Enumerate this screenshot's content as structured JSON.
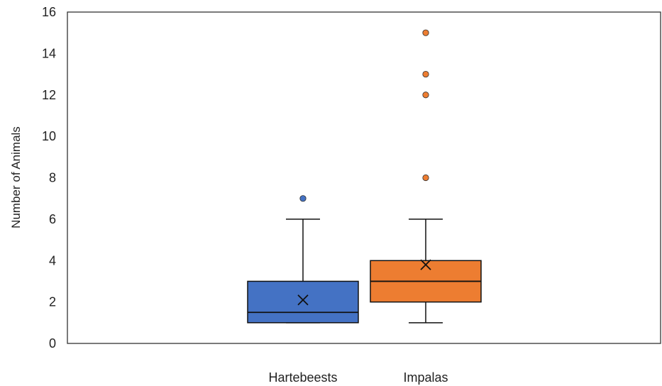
{
  "chart_data": {
    "type": "box",
    "ylabel": "Number of Animals",
    "ylim": [
      0,
      16
    ],
    "yticks": [
      0,
      2,
      4,
      6,
      8,
      10,
      12,
      14,
      16
    ],
    "grid": false,
    "categories": [
      "Hartebeests",
      "Impalas"
    ],
    "series": [
      {
        "category": "Hartebeests",
        "color": "#4472C4",
        "whisker_low": 1,
        "q1": 1,
        "median": 1.5,
        "q3": 3,
        "whisker_high": 6,
        "mean": 2.1,
        "outliers": [
          7
        ]
      },
      {
        "category": "Impalas",
        "color": "#ED7D31",
        "whisker_low": 1,
        "q1": 2,
        "median": 3,
        "q3": 4,
        "whisker_high": 6,
        "mean": 3.8,
        "outliers": [
          8,
          12,
          13,
          15
        ]
      }
    ]
  }
}
